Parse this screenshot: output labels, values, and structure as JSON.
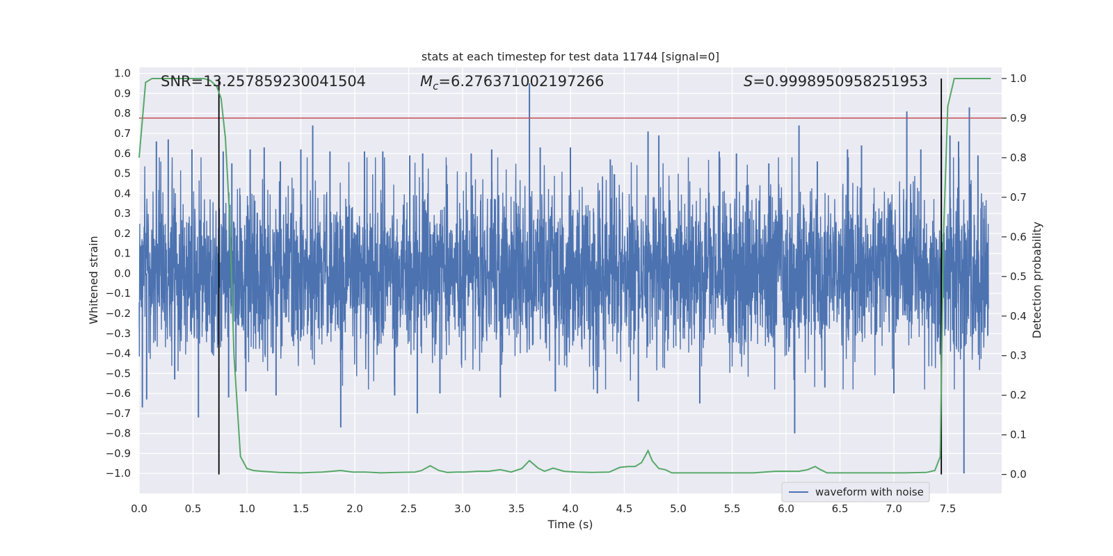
{
  "chart_data": {
    "type": "line",
    "title": "stats at each timestep for test data 11744 [signal=0]",
    "xlabel": "Time (s)",
    "ylabel": "Whitened strain",
    "y2label": "Detection probability",
    "xlim": [
      0.0,
      8.0
    ],
    "ylim": [
      -1.1,
      1.03
    ],
    "y2lim": [
      -0.048,
      1.028
    ],
    "x_ticks": [
      "0.0",
      "0.5",
      "1.0",
      "1.5",
      "2.0",
      "2.5",
      "3.0",
      "3.5",
      "4.0",
      "4.5",
      "5.0",
      "5.5",
      "6.0",
      "6.5",
      "7.0",
      "7.5"
    ],
    "y_ticks": [
      "1.0",
      "0.9",
      "0.8",
      "0.7",
      "0.6",
      "0.5",
      "0.4",
      "0.3",
      "0.2",
      "0.1",
      "0.0",
      "-0.1",
      "-0.2",
      "-0.3",
      "-0.4",
      "-0.5",
      "-0.6",
      "-0.7",
      "-0.8",
      "-0.9",
      "-1.0"
    ],
    "y2_ticks": [
      "1.0",
      "0.9",
      "0.8",
      "0.7",
      "0.6",
      "0.5",
      "0.4",
      "0.3",
      "0.2",
      "0.1",
      "0.0"
    ],
    "annotations": {
      "snr": "SNR=13.257859230041504",
      "mc_symbol": "M",
      "mc_sub": "c",
      "mc_value": "=6.276371002197266",
      "s_symbol": "S",
      "s_value": "=0.9998950958251953"
    },
    "threshold_y2": 0.9,
    "vertical_lines_x": [
      0.74,
      7.44
    ],
    "legend": {
      "label": "waveform with noise",
      "placement": "lower-right"
    },
    "grid": true,
    "colors": {
      "waveform": "#4c72b0",
      "probability": "#55a868",
      "threshold": "#c44e52",
      "vlines": "#000000",
      "background": "#eaeaf2",
      "grid": "#ffffff"
    },
    "series": [
      {
        "name": "waveform with noise",
        "style": "noise",
        "samples_per_second": 512,
        "envelope_p97": 0.46,
        "spikes_x": [
          0.03,
          0.07,
          0.16,
          0.27,
          0.33,
          0.49,
          0.55,
          0.78,
          0.83,
          0.86,
          0.99,
          1.03,
          1.16,
          1.27,
          1.31,
          1.5,
          1.61,
          1.77,
          1.87,
          2.09,
          2.26,
          2.37,
          2.51,
          2.58,
          2.63,
          2.79,
          3.08,
          3.27,
          3.35,
          3.62,
          3.72,
          3.86,
          4.0,
          4.25,
          4.37,
          4.63,
          4.72,
          4.82,
          5.2,
          5.38,
          5.54,
          5.84,
          6.08,
          6.12,
          6.29,
          6.36,
          6.57,
          6.7,
          7.0,
          7.12,
          7.25,
          7.44,
          7.52,
          7.6,
          7.65,
          7.7,
          7.78
        ],
        "spikes_y": [
          -0.67,
          -0.63,
          0.66,
          0.67,
          -0.53,
          0.62,
          -0.72,
          0.61,
          -0.62,
          0.55,
          -0.59,
          0.62,
          0.63,
          -0.61,
          0.56,
          0.62,
          0.74,
          0.61,
          -0.77,
          0.61,
          0.61,
          -0.61,
          0.59,
          -0.7,
          0.6,
          -0.6,
          0.6,
          0.62,
          -0.62,
          0.95,
          0.63,
          -0.59,
          0.63,
          -0.6,
          0.57,
          -0.64,
          0.71,
          0.69,
          -0.65,
          0.61,
          0.6,
          0.55,
          -0.8,
          0.74,
          0.56,
          -0.57,
          0.62,
          0.64,
          -0.6,
          0.81,
          0.62,
          0.69,
          0.69,
          0.66,
          -1.0,
          0.83,
          0.59
        ]
      },
      {
        "name": "Detection probability",
        "axis": "y2",
        "x": [
          0.0,
          0.06,
          0.12,
          0.2,
          0.3,
          0.4,
          0.5,
          0.6,
          0.66,
          0.72,
          0.76,
          0.8,
          0.84,
          0.88,
          0.94,
          1.0,
          1.06,
          1.14,
          1.3,
          1.5,
          1.7,
          1.87,
          1.98,
          2.1,
          2.24,
          2.4,
          2.56,
          2.62,
          2.7,
          2.78,
          2.86,
          2.94,
          3.02,
          3.14,
          3.24,
          3.35,
          3.45,
          3.55,
          3.62,
          3.7,
          3.76,
          3.84,
          3.94,
          4.06,
          4.2,
          4.36,
          4.46,
          4.54,
          4.6,
          4.66,
          4.72,
          4.76,
          4.82,
          4.88,
          4.94,
          5.04,
          5.14,
          5.3,
          5.5,
          5.7,
          5.9,
          6.02,
          6.12,
          6.2,
          6.27,
          6.32,
          6.38,
          6.44,
          6.5,
          6.7,
          6.9,
          7.1,
          7.3,
          7.38,
          7.43,
          7.46,
          7.5,
          7.56,
          7.64,
          7.72,
          7.8,
          7.9
        ],
        "values": [
          0.8,
          0.99,
          1.0,
          1.0,
          1.0,
          1.0,
          1.0,
          1.0,
          0.995,
          0.98,
          0.95,
          0.85,
          0.65,
          0.3,
          0.045,
          0.015,
          0.01,
          0.008,
          0.005,
          0.004,
          0.006,
          0.01,
          0.006,
          0.006,
          0.004,
          0.005,
          0.006,
          0.01,
          0.022,
          0.01,
          0.005,
          0.006,
          0.006,
          0.008,
          0.008,
          0.012,
          0.006,
          0.015,
          0.035,
          0.016,
          0.008,
          0.016,
          0.008,
          0.006,
          0.005,
          0.006,
          0.018,
          0.02,
          0.02,
          0.03,
          0.06,
          0.034,
          0.015,
          0.012,
          0.004,
          0.004,
          0.004,
          0.004,
          0.004,
          0.004,
          0.008,
          0.008,
          0.008,
          0.012,
          0.02,
          0.012,
          0.004,
          0.004,
          0.004,
          0.004,
          0.004,
          0.004,
          0.005,
          0.01,
          0.045,
          0.6,
          0.93,
          1.0,
          1.0,
          1.0,
          1.0,
          1.0
        ]
      }
    ]
  }
}
